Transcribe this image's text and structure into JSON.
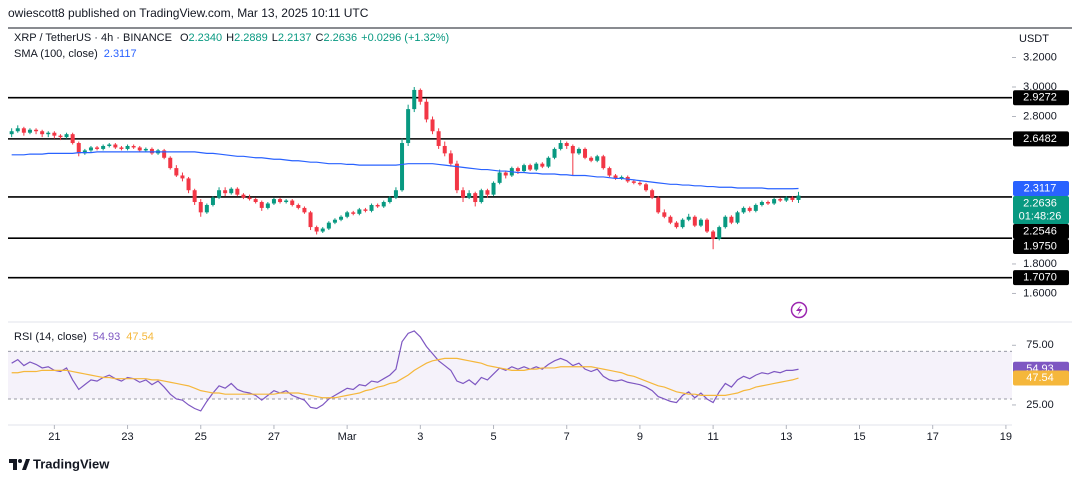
{
  "header": {
    "published_by": "owiescott8 published on TradingView.com, Mar 13, 2025 10:11 UTC",
    "brand": "TradingView"
  },
  "chart_data": {
    "type": "candlestick",
    "title": "XRP / TetherUS · 4h · BINANCE",
    "currency": "USDT",
    "ohlc_legend": {
      "keys": [
        "O",
        "H",
        "L",
        "C"
      ],
      "value_labels": [
        "2.2340",
        "2.2889",
        "2.2137",
        "2.2636"
      ],
      "change_label": "+0.0296 (+1.32%)"
    },
    "up_color": "#089981",
    "down_color": "#f23645",
    "ohlc": [
      [
        2.68,
        2.72,
        2.66,
        2.7
      ],
      [
        2.7,
        2.74,
        2.69,
        2.72
      ],
      [
        2.72,
        2.73,
        2.67,
        2.69
      ],
      [
        2.69,
        2.72,
        2.68,
        2.71
      ],
      [
        2.71,
        2.72,
        2.68,
        2.7
      ],
      [
        2.7,
        2.71,
        2.66,
        2.68
      ],
      [
        2.68,
        2.7,
        2.66,
        2.69
      ],
      [
        2.69,
        2.7,
        2.65,
        2.67
      ],
      [
        2.67,
        2.68,
        2.64,
        2.66
      ],
      [
        2.66,
        2.69,
        2.65,
        2.68
      ],
      [
        2.68,
        2.69,
        2.61,
        2.62
      ],
      [
        2.62,
        2.63,
        2.53,
        2.55
      ],
      [
        2.55,
        2.58,
        2.54,
        2.57
      ],
      [
        2.57,
        2.6,
        2.56,
        2.59
      ],
      [
        2.59,
        2.6,
        2.57,
        2.58
      ],
      [
        2.58,
        2.61,
        2.57,
        2.6
      ],
      [
        2.6,
        2.62,
        2.59,
        2.61
      ],
      [
        2.61,
        2.62,
        2.58,
        2.59
      ],
      [
        2.59,
        2.6,
        2.57,
        2.58
      ],
      [
        2.58,
        2.61,
        2.57,
        2.6
      ],
      [
        2.6,
        2.61,
        2.58,
        2.59
      ],
      [
        2.59,
        2.6,
        2.56,
        2.57
      ],
      [
        2.57,
        2.59,
        2.56,
        2.58
      ],
      [
        2.58,
        2.59,
        2.54,
        2.55
      ],
      [
        2.55,
        2.58,
        2.54,
        2.57
      ],
      [
        2.57,
        2.58,
        2.51,
        2.52
      ],
      [
        2.52,
        2.53,
        2.44,
        2.45
      ],
      [
        2.45,
        2.47,
        2.39,
        2.4
      ],
      [
        2.4,
        2.42,
        2.36,
        2.38
      ],
      [
        2.38,
        2.39,
        2.28,
        2.3
      ],
      [
        2.3,
        2.31,
        2.2,
        2.22
      ],
      [
        2.22,
        2.24,
        2.12,
        2.15
      ],
      [
        2.15,
        2.21,
        2.14,
        2.2
      ],
      [
        2.2,
        2.26,
        2.19,
        2.25
      ],
      [
        2.25,
        2.32,
        2.24,
        2.3
      ],
      [
        2.3,
        2.32,
        2.26,
        2.28
      ],
      [
        2.28,
        2.32,
        2.27,
        2.31
      ],
      [
        2.31,
        2.32,
        2.26,
        2.27
      ],
      [
        2.27,
        2.28,
        2.24,
        2.25
      ],
      [
        2.25,
        2.27,
        2.23,
        2.24
      ],
      [
        2.24,
        2.25,
        2.21,
        2.22
      ],
      [
        2.22,
        2.23,
        2.16,
        2.18
      ],
      [
        2.18,
        2.22,
        2.17,
        2.21
      ],
      [
        2.21,
        2.25,
        2.2,
        2.24
      ],
      [
        2.24,
        2.25,
        2.21,
        2.22
      ],
      [
        2.22,
        2.24,
        2.21,
        2.23
      ],
      [
        2.23,
        2.24,
        2.19,
        2.2
      ],
      [
        2.2,
        2.21,
        2.17,
        2.18
      ],
      [
        2.18,
        2.19,
        2.14,
        2.15
      ],
      [
        2.15,
        2.16,
        2.03,
        2.05
      ],
      [
        2.05,
        2.06,
        2.0,
        2.02
      ],
      [
        2.02,
        2.05,
        2.01,
        2.04
      ],
      [
        2.04,
        2.09,
        2.03,
        2.08
      ],
      [
        2.08,
        2.11,
        2.07,
        2.1
      ],
      [
        2.1,
        2.13,
        2.09,
        2.12
      ],
      [
        2.12,
        2.16,
        2.11,
        2.15
      ],
      [
        2.15,
        2.16,
        2.13,
        2.14
      ],
      [
        2.14,
        2.18,
        2.13,
        2.17
      ],
      [
        2.17,
        2.18,
        2.15,
        2.16
      ],
      [
        2.16,
        2.21,
        2.15,
        2.2
      ],
      [
        2.2,
        2.21,
        2.18,
        2.19
      ],
      [
        2.19,
        2.23,
        2.18,
        2.22
      ],
      [
        2.22,
        2.26,
        2.21,
        2.25
      ],
      [
        2.25,
        2.32,
        2.24,
        2.3
      ],
      [
        2.3,
        2.65,
        2.29,
        2.62
      ],
      [
        2.62,
        2.88,
        2.6,
        2.85
      ],
      [
        2.85,
        3.0,
        2.83,
        2.98
      ],
      [
        2.98,
        2.99,
        2.88,
        2.9
      ],
      [
        2.9,
        2.92,
        2.76,
        2.78
      ],
      [
        2.78,
        2.8,
        2.68,
        2.7
      ],
      [
        2.7,
        2.72,
        2.58,
        2.6
      ],
      [
        2.6,
        2.63,
        2.53,
        2.55
      ],
      [
        2.55,
        2.57,
        2.46,
        2.48
      ],
      [
        2.48,
        2.5,
        2.28,
        2.3
      ],
      [
        2.3,
        2.32,
        2.22,
        2.25
      ],
      [
        2.25,
        2.3,
        2.24,
        2.28
      ],
      [
        2.28,
        2.29,
        2.19,
        2.22
      ],
      [
        2.22,
        2.31,
        2.21,
        2.3
      ],
      [
        2.3,
        2.31,
        2.25,
        2.27
      ],
      [
        2.27,
        2.36,
        2.26,
        2.35
      ],
      [
        2.35,
        2.44,
        2.34,
        2.42
      ],
      [
        2.42,
        2.43,
        2.38,
        2.4
      ],
      [
        2.4,
        2.46,
        2.39,
        2.45
      ],
      [
        2.45,
        2.46,
        2.41,
        2.43
      ],
      [
        2.43,
        2.48,
        2.42,
        2.47
      ],
      [
        2.47,
        2.48,
        2.43,
        2.44
      ],
      [
        2.44,
        2.49,
        2.43,
        2.48
      ],
      [
        2.48,
        2.49,
        2.45,
        2.46
      ],
      [
        2.46,
        2.53,
        2.45,
        2.52
      ],
      [
        2.52,
        2.59,
        2.51,
        2.58
      ],
      [
        2.58,
        2.64,
        2.57,
        2.62
      ],
      [
        2.62,
        2.63,
        2.58,
        2.6
      ],
      [
        2.6,
        2.61,
        2.4,
        2.55
      ],
      [
        2.55,
        2.59,
        2.54,
        2.58
      ],
      [
        2.58,
        2.59,
        2.51,
        2.52
      ],
      [
        2.52,
        2.53,
        2.49,
        2.5
      ],
      [
        2.5,
        2.54,
        2.49,
        2.53
      ],
      [
        2.53,
        2.54,
        2.44,
        2.45
      ],
      [
        2.45,
        2.46,
        2.39,
        2.4
      ],
      [
        2.4,
        2.41,
        2.37,
        2.38
      ],
      [
        2.38,
        2.4,
        2.37,
        2.39
      ],
      [
        2.39,
        2.4,
        2.35,
        2.36
      ],
      [
        2.36,
        2.37,
        2.34,
        2.35
      ],
      [
        2.35,
        2.36,
        2.33,
        2.34
      ],
      [
        2.34,
        2.35,
        2.29,
        2.3
      ],
      [
        2.3,
        2.31,
        2.24,
        2.25
      ],
      [
        2.25,
        2.26,
        2.14,
        2.15
      ],
      [
        2.15,
        2.17,
        2.11,
        2.12
      ],
      [
        2.12,
        2.13,
        2.07,
        2.08
      ],
      [
        2.08,
        2.09,
        2.04,
        2.05
      ],
      [
        2.05,
        2.11,
        2.04,
        2.1
      ],
      [
        2.1,
        2.14,
        2.09,
        2.12
      ],
      [
        2.12,
        2.13,
        2.05,
        2.06
      ],
      [
        2.06,
        2.11,
        2.05,
        2.1
      ],
      [
        2.1,
        2.11,
        2.01,
        2.02
      ],
      [
        2.02,
        2.03,
        1.9,
        1.97
      ],
      [
        1.97,
        2.06,
        1.96,
        2.05
      ],
      [
        2.05,
        2.13,
        2.04,
        2.12
      ],
      [
        2.12,
        2.13,
        2.07,
        2.08
      ],
      [
        2.08,
        2.16,
        2.07,
        2.15
      ],
      [
        2.15,
        2.19,
        2.14,
        2.18
      ],
      [
        2.18,
        2.19,
        2.15,
        2.16
      ],
      [
        2.16,
        2.21,
        2.15,
        2.2
      ],
      [
        2.2,
        2.23,
        2.19,
        2.22
      ],
      [
        2.22,
        2.23,
        2.2,
        2.21
      ],
      [
        2.21,
        2.25,
        2.2,
        2.24
      ],
      [
        2.24,
        2.25,
        2.22,
        2.23
      ],
      [
        2.23,
        2.26,
        2.22,
        2.25
      ],
      [
        2.25,
        2.26,
        2.22,
        2.234
      ],
      [
        2.234,
        2.2889,
        2.2137,
        2.2636
      ]
    ],
    "countdown": "01:48:26",
    "xlim": [
      -0.6,
      164
    ],
    "xticks": [
      {
        "value": 7,
        "label": "21"
      },
      {
        "value": 19,
        "label": "23"
      },
      {
        "value": 31,
        "label": "25"
      },
      {
        "value": 43,
        "label": "27"
      },
      {
        "value": 55,
        "label": "Mar"
      },
      {
        "value": 67,
        "label": "3"
      },
      {
        "value": 79,
        "label": "5"
      },
      {
        "value": 91,
        "label": "7"
      },
      {
        "value": 103,
        "label": "9"
      },
      {
        "value": 115,
        "label": "11"
      },
      {
        "value": 127,
        "label": "13"
      },
      {
        "value": 139,
        "label": "15"
      },
      {
        "value": 151,
        "label": "17"
      },
      {
        "value": 163,
        "label": "19"
      }
    ],
    "ylim": [
      1.42,
      3.4
    ],
    "yticks": [
      {
        "value": 3.2,
        "label": "3.2000"
      },
      {
        "value": 3.0,
        "label": "3.0000"
      },
      {
        "value": 2.8,
        "label": "2.8000"
      },
      {
        "value": 1.8,
        "label": "1.8000"
      },
      {
        "value": 1.6,
        "label": "1.6000"
      }
    ],
    "levels": {
      "color": "#000000",
      "values": [
        2.9272,
        2.6482,
        2.2546,
        1.975,
        1.707
      ],
      "value_labels": [
        "2.9272",
        "2.6482",
        "2.2546",
        "1.9750",
        "1.7070"
      ]
    },
    "sma": {
      "name": "SMA (100, close)",
      "color": "#2962ff",
      "values": [
        2.54,
        2.54,
        2.54,
        2.545,
        2.545,
        2.545,
        2.55,
        2.55,
        2.55,
        2.55,
        2.55,
        2.555,
        2.555,
        2.555,
        2.56,
        2.56,
        2.56,
        2.56,
        2.56,
        2.56,
        2.56,
        2.56,
        2.56,
        2.56,
        2.56,
        2.56,
        2.56,
        2.56,
        2.56,
        2.56,
        2.56,
        2.555,
        2.55,
        2.55,
        2.545,
        2.54,
        2.535,
        2.53,
        2.53,
        2.525,
        2.52,
        2.52,
        2.515,
        2.51,
        2.51,
        2.505,
        2.5,
        2.5,
        2.495,
        2.49,
        2.49,
        2.485,
        2.48,
        2.48,
        2.48,
        2.475,
        2.475,
        2.47,
        2.47,
        2.47,
        2.47,
        2.47,
        2.47,
        2.47,
        2.475,
        2.48,
        2.48,
        2.48,
        2.48,
        2.48,
        2.475,
        2.47,
        2.465,
        2.46,
        2.455,
        2.45,
        2.445,
        2.44,
        2.44,
        2.435,
        2.43,
        2.43,
        2.425,
        2.42,
        2.42,
        2.415,
        2.415,
        2.41,
        2.41,
        2.41,
        2.405,
        2.405,
        2.4,
        2.4,
        2.4,
        2.395,
        2.39,
        2.39,
        2.385,
        2.38,
        2.38,
        2.375,
        2.37,
        2.365,
        2.36,
        2.355,
        2.35,
        2.345,
        2.34,
        2.34,
        2.335,
        2.335,
        2.33,
        2.33,
        2.325,
        2.325,
        2.32,
        2.32,
        2.32,
        2.315,
        2.315,
        2.315,
        2.315,
        2.315,
        2.31,
        2.31,
        2.31,
        2.31,
        2.31,
        2.3117
      ]
    },
    "rsi": {
      "title": "RSI (14, close)",
      "ylim": [
        4,
        92
      ],
      "yticks": [
        {
          "value": 75,
          "label": "75.00"
        },
        {
          "value": 25,
          "label": "25.00"
        }
      ],
      "bands": [
        70,
        30
      ],
      "band_color": "#7e57c2",
      "series": [
        {
          "color": "#7e57c2",
          "values": [
            60,
            63,
            58,
            61,
            59,
            56,
            57,
            54,
            53,
            56,
            46,
            38,
            42,
            46,
            45,
            48,
            50,
            47,
            45,
            48,
            47,
            44,
            46,
            42,
            45,
            40,
            34,
            30,
            29,
            25,
            22,
            20,
            28,
            35,
            41,
            39,
            43,
            38,
            36,
            35,
            33,
            29,
            33,
            37,
            35,
            37,
            33,
            31,
            29,
            23,
            22,
            25,
            30,
            33,
            36,
            39,
            38,
            42,
            41,
            45,
            44,
            47,
            50,
            55,
            78,
            85,
            87,
            82,
            74,
            68,
            62,
            58,
            54,
            45,
            43,
            46,
            42,
            48,
            46,
            51,
            56,
            54,
            57,
            55,
            57,
            55,
            57,
            55,
            59,
            62,
            64,
            62,
            58,
            60,
            55,
            53,
            55,
            49,
            46,
            45,
            46,
            44,
            43,
            42,
            40,
            37,
            32,
            30,
            28,
            27,
            33,
            36,
            31,
            35,
            30,
            27,
            36,
            43,
            40,
            46,
            49,
            47,
            50,
            52,
            51,
            53,
            52,
            54,
            54,
            54.93
          ]
        },
        {
          "color": "#f5b73b",
          "values": [
            52,
            52,
            53,
            53,
            53,
            54,
            54,
            54,
            54,
            54,
            53,
            52,
            51,
            50,
            49,
            48,
            48,
            47,
            47,
            47,
            47,
            47,
            47,
            46,
            46,
            45,
            44,
            43,
            42,
            41,
            39,
            37,
            36,
            35,
            35,
            34,
            34,
            34,
            34,
            34,
            34,
            34,
            34,
            34,
            35,
            35,
            35,
            35,
            34,
            33,
            32,
            31,
            31,
            31,
            32,
            33,
            34,
            35,
            37,
            38,
            40,
            41,
            43,
            44,
            47,
            50,
            54,
            57,
            60,
            62,
            63,
            64,
            64,
            64,
            63,
            62,
            61,
            60,
            58,
            57,
            56,
            55,
            54,
            54,
            54,
            55,
            55,
            56,
            56,
            56,
            57,
            57,
            57,
            57,
            57,
            57,
            56,
            55,
            54,
            53,
            52,
            50,
            49,
            47,
            45,
            43,
            41,
            40,
            38,
            36,
            35,
            34,
            34,
            33,
            33,
            33,
            33,
            33,
            34,
            35,
            37,
            38,
            40,
            41,
            42,
            43,
            44,
            45,
            46,
            47.54
          ]
        }
      ]
    }
  }
}
